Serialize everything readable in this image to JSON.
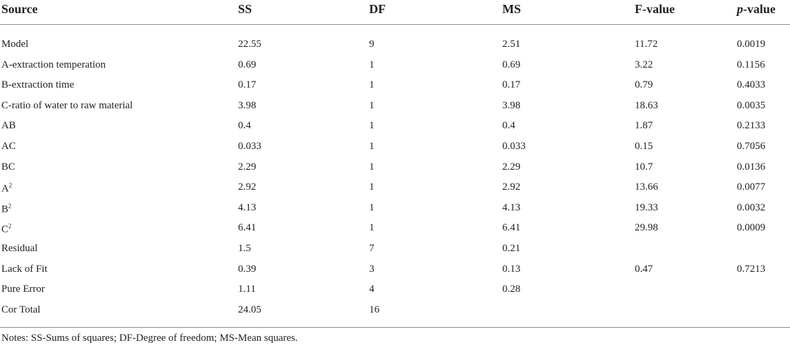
{
  "table": {
    "header": [
      "Source",
      "SS",
      "DF",
      "MS",
      "F-value",
      {
        "italic": "p",
        "text": "-value"
      }
    ],
    "rows": [
      [
        "Model",
        "22.55",
        "9",
        "2.51",
        "11.72",
        "0.0019"
      ],
      [
        "A-extraction temperation",
        "0.69",
        "1",
        "0.69",
        "3.22",
        "0.1156"
      ],
      [
        "B-extraction time",
        "0.17",
        "1",
        "0.17",
        "0.79",
        "0.4033"
      ],
      [
        "C-ratio of water to raw material",
        "3.98",
        "1",
        "3.98",
        "18.63",
        "0.0035"
      ],
      [
        "AB",
        "0.4",
        "1",
        "0.4",
        "1.87",
        "0.2133"
      ],
      [
        "AC",
        "0.033",
        "1",
        "0.033",
        "0.15",
        "0.7056"
      ],
      [
        "BC",
        "2.29",
        "1",
        "2.29",
        "10.7",
        "0.0136"
      ],
      [
        {
          "base": "A",
          "sup": "2"
        },
        "2.92",
        "1",
        "2.92",
        "13.66",
        "0.0077"
      ],
      [
        {
          "base": "B",
          "sup": "2"
        },
        "4.13",
        "1",
        "4.13",
        "19.33",
        "0.0032"
      ],
      [
        {
          "base": "C",
          "sup": "2"
        },
        "6.41",
        "1",
        "6.41",
        "29.98",
        "0.0009"
      ],
      [
        "Residual",
        "1.5",
        "7",
        "0.21",
        null,
        null
      ],
      [
        "Lack of Fit",
        "0.39",
        "3",
        "0.13",
        "0.47",
        "0.7213"
      ],
      [
        "Pure Error",
        "1.11",
        "4",
        "0.28",
        null,
        null
      ],
      [
        "Cor Total",
        "24.05",
        "16",
        null,
        null,
        null
      ]
    ],
    "notes": "Notes: SS-Sums of squares; DF-Degree of freedom; MS-Mean squares."
  }
}
